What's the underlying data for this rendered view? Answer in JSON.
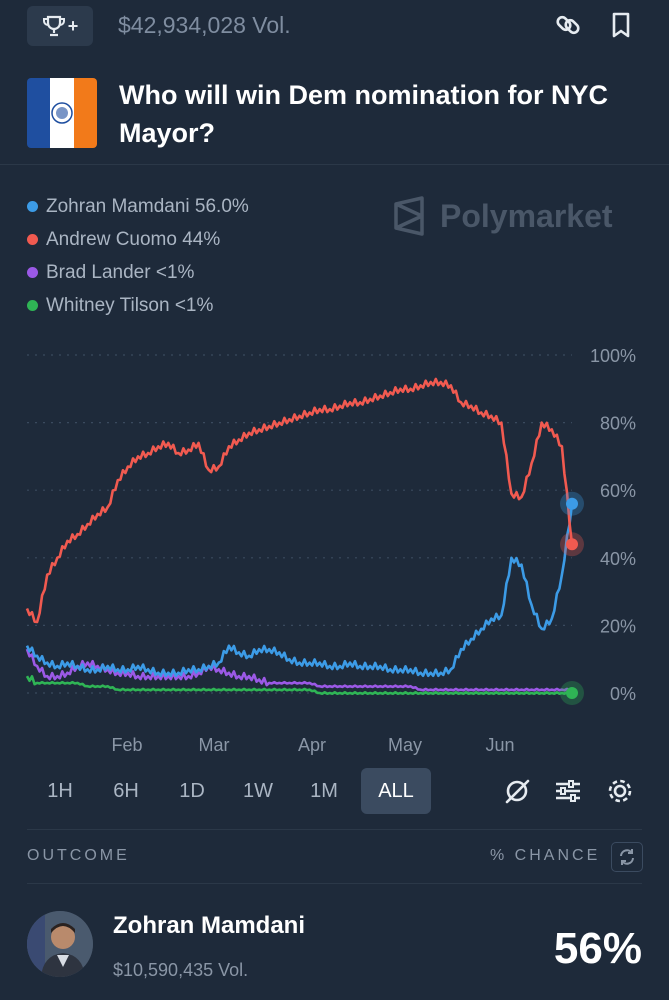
{
  "topbar": {
    "volume": "$42,934,028 Vol.",
    "trophy_plus": "+"
  },
  "header": {
    "title": "Who will win Dem nomination for NYC Mayor?"
  },
  "legend": [
    {
      "label": "Zohran Mamdani 56.0%",
      "color": "#3c9be6"
    },
    {
      "label": "Andrew Cuomo 44%",
      "color": "#f15a50"
    },
    {
      "label": "Brad Lander <1%",
      "color": "#9b59e6"
    },
    {
      "label": "Whitney Tilson <1%",
      "color": "#2fb455"
    }
  ],
  "watermark": "Polymarket",
  "chart_data": {
    "type": "line",
    "x_labels": [
      "Feb",
      "Mar",
      "Apr",
      "May",
      "Jun"
    ],
    "y_ticks": [
      "100%",
      "80%",
      "60%",
      "40%",
      "20%",
      "0%"
    ],
    "ylim": [
      0,
      100
    ],
    "grid": "horizontal dotted",
    "series": [
      {
        "name": "Zohran Mamdani",
        "color": "#3c9be6",
        "values": [
          14,
          11,
          9,
          8,
          9,
          8,
          7,
          7,
          8,
          7,
          7,
          8,
          7,
          6,
          6,
          6,
          7,
          7,
          8,
          9,
          14,
          12,
          11,
          13,
          13,
          12,
          10,
          9,
          9,
          9,
          8,
          8,
          9,
          8,
          8,
          8,
          7,
          7,
          7,
          6,
          6,
          6,
          7,
          13,
          16,
          19,
          22,
          23,
          40,
          38,
          26,
          19,
          22,
          35,
          56
        ]
      },
      {
        "name": "Andrew Cuomo",
        "color": "#f15a50",
        "values": [
          25,
          21,
          35,
          40,
          45,
          47,
          50,
          53,
          55,
          63,
          67,
          70,
          71,
          73,
          74,
          71,
          72,
          74,
          66,
          67,
          73,
          75,
          77,
          78,
          79,
          80,
          81,
          82,
          83,
          84,
          84,
          85,
          86,
          86,
          87,
          88,
          89,
          90,
          90,
          91,
          92,
          92,
          91,
          86,
          85,
          83,
          82,
          80,
          59,
          58,
          68,
          80,
          78,
          73,
          44
        ]
      },
      {
        "name": "Brad Lander",
        "color": "#9b59e6",
        "values": [
          13,
          8,
          5,
          5,
          6,
          8,
          9,
          8,
          7,
          6,
          6,
          5,
          5,
          5,
          5,
          5,
          5,
          6,
          8,
          7,
          6,
          5,
          5,
          4,
          3,
          3,
          3,
          3,
          3,
          2,
          2,
          2,
          2,
          2,
          2,
          2,
          2,
          2,
          2,
          1,
          1,
          1,
          1,
          1,
          1,
          1,
          1,
          1,
          1,
          1,
          1,
          1,
          1,
          1,
          1
        ]
      },
      {
        "name": "Whitney Tilson",
        "color": "#2fb455",
        "values": [
          5,
          3,
          3,
          3,
          3,
          3,
          2,
          2,
          2,
          1,
          1,
          1,
          1,
          1,
          1,
          1,
          1,
          1,
          1,
          1,
          1,
          1,
          1,
          1,
          1,
          1,
          1,
          1,
          1,
          0,
          0,
          0,
          0,
          0,
          0,
          0,
          0,
          0,
          0,
          0,
          0,
          0,
          0,
          0,
          0,
          0,
          0,
          0,
          0,
          0,
          0,
          0,
          0,
          0,
          0
        ]
      }
    ]
  },
  "ranges": [
    "1H",
    "6H",
    "1D",
    "1W",
    "1M",
    "ALL"
  ],
  "active_range": "ALL",
  "outcome": {
    "col_outcome": "OUTCOME",
    "col_chance": "% CHANCE",
    "name": "Zohran Mamdani",
    "volume": "$10,590,435 Vol.",
    "chance": "56%"
  }
}
